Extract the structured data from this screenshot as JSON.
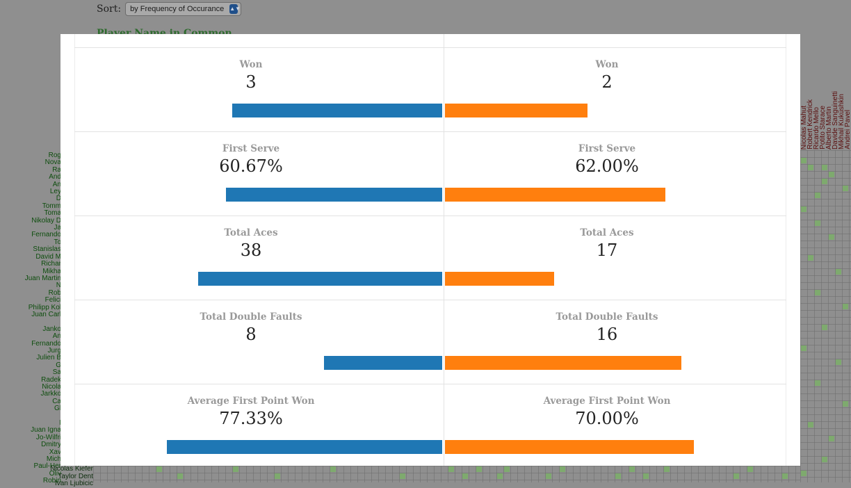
{
  "background": {
    "sort_label": "Sort:",
    "sort_value": "by Frequency of Occurance",
    "heading": "Player Name in Common",
    "left_names": [
      "Rog",
      "Nova",
      "Ra",
      "And",
      "An",
      "Ley",
      "D",
      "Tomm",
      "Toma",
      "Nikolay D",
      "Ja",
      "Fernando",
      "To",
      "Stanislas",
      "David M",
      "Richar",
      "Mikha",
      "Juan Martin",
      "N",
      "Rob",
      "Felici",
      "Philipp Kol",
      "Juan Carl",
      "",
      "Janko",
      "An",
      "Fernando",
      "Jurg",
      "Julien B",
      "G",
      "Sa",
      "Radek",
      "Nicola",
      "Jarkko",
      "Ca",
      "Gl",
      "",
      "I",
      "Juan Igna",
      "Jo-Wilfri",
      "Dmitry",
      "Xav",
      "Mich",
      "Paul-Her",
      "Oliv",
      "Robin"
    ],
    "bottom_names": [
      "Nicolas Kiefer",
      "Taylor Dent",
      "Ivan Ljubicic"
    ],
    "top_names": [
      "Nicolas Mahut",
      "Robert Kendrick",
      "Ricardo Mello",
      "Potito Starace",
      "Alberto Martin",
      "Davide Sanguinetti",
      "Mikhail Kukushkin",
      "Andrei Pavel"
    ]
  },
  "comparison": {
    "stats": [
      {
        "label": "Won",
        "left_value": "3",
        "right_value": "2",
        "left_fraction": 0.59,
        "right_fraction": 0.4
      },
      {
        "label": "First Serve",
        "left_value": "60.67%",
        "right_value": "62.00%",
        "left_fraction": 0.6067,
        "right_fraction": 0.62
      },
      {
        "label": "Total Aces",
        "left_value": "38",
        "right_value": "17",
        "left_fraction": 0.686,
        "right_fraction": 0.307
      },
      {
        "label": "Total Double Faults",
        "left_value": "8",
        "right_value": "16",
        "left_fraction": 0.332,
        "right_fraction": 0.664
      },
      {
        "label": "Average First Point Won",
        "left_value": "77.33%",
        "right_value": "70.00%",
        "left_fraction": 0.7733,
        "right_fraction": 0.7
      }
    ],
    "colors": {
      "left": "#1f77b4",
      "right": "#ff7f0e"
    }
  }
}
